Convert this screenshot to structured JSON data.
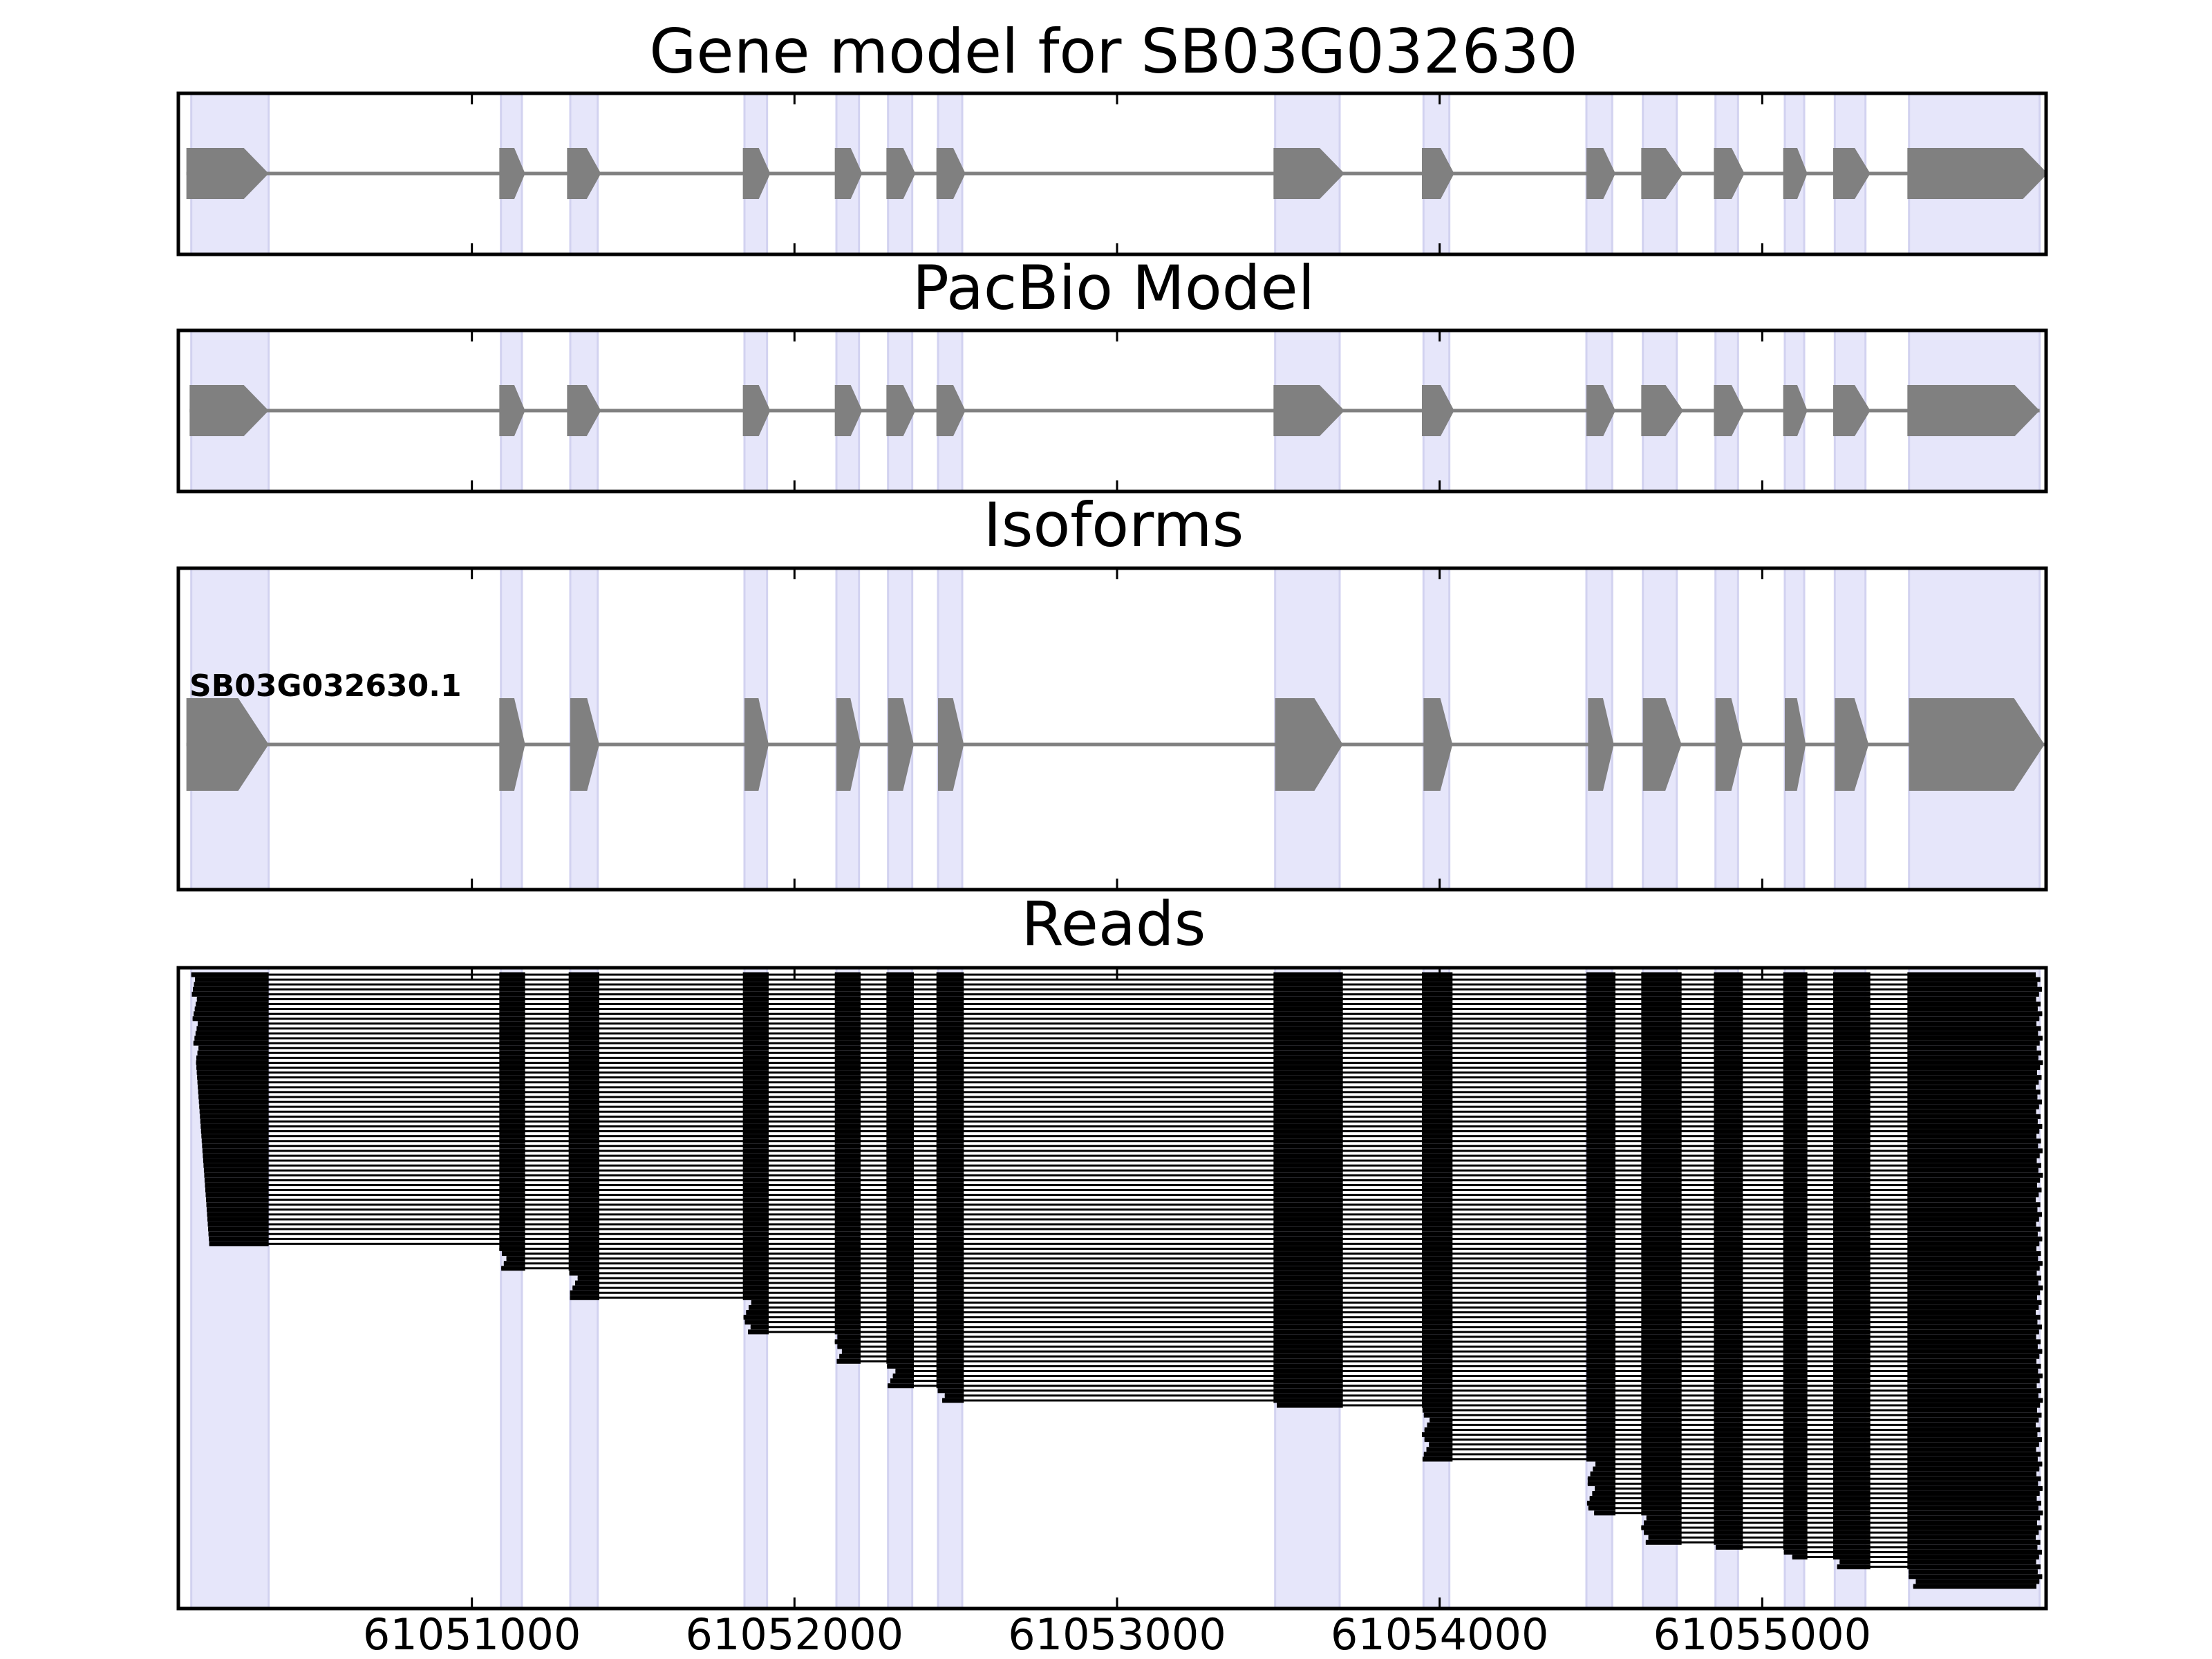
{
  "colors": {
    "exon_highlight": "#e6e6fa",
    "exon_highlight_edge": "#d2d2f0",
    "gene_feature": "#808080",
    "read": "#000000",
    "frame": "#000000"
  },
  "chart_data": {
    "type": "gene_structure_tracks",
    "x_axis": {
      "range": [
        61050090,
        61055880
      ],
      "ticks": [
        61051000,
        61052000,
        61053000,
        61054000,
        61055000
      ],
      "tick_labels": [
        "61051000",
        "61052000",
        "61053000",
        "61054000",
        "61055000"
      ]
    },
    "exon_regions": [
      [
        61050130,
        61050370
      ],
      [
        61051090,
        61051155
      ],
      [
        61051305,
        61051390
      ],
      [
        61051845,
        61051915
      ],
      [
        61052130,
        61052200
      ],
      [
        61052290,
        61052365
      ],
      [
        61052445,
        61052520
      ],
      [
        61053490,
        61053690
      ],
      [
        61053950,
        61054030
      ],
      [
        61054455,
        61054535
      ],
      [
        61054630,
        61054735
      ],
      [
        61054855,
        61054925
      ],
      [
        61055070,
        61055130
      ],
      [
        61055225,
        61055320
      ],
      [
        61055455,
        61055860
      ]
    ],
    "panels": [
      {
        "title": "Gene model for SB03G032630",
        "kind": "gene",
        "exons": [
          [
            61050115,
            61050370
          ],
          [
            61051085,
            61051165
          ],
          [
            61051295,
            61051400
          ],
          [
            61051840,
            61051925
          ],
          [
            61052125,
            61052210
          ],
          [
            61052285,
            61052375
          ],
          [
            61052440,
            61052530
          ],
          [
            61053485,
            61053705
          ],
          [
            61053945,
            61054045
          ],
          [
            61054455,
            61054545
          ],
          [
            61054625,
            61054755
          ],
          [
            61054850,
            61054945
          ],
          [
            61055065,
            61055140
          ],
          [
            61055220,
            61055335
          ],
          [
            61055450,
            61055885
          ]
        ]
      },
      {
        "title": "PacBio Model",
        "kind": "gene",
        "exons": [
          [
            61050125,
            61050370
          ],
          [
            61051085,
            61051165
          ],
          [
            61051295,
            61051400
          ],
          [
            61051840,
            61051925
          ],
          [
            61052125,
            61052210
          ],
          [
            61052285,
            61052375
          ],
          [
            61052440,
            61052530
          ],
          [
            61053485,
            61053705
          ],
          [
            61053945,
            61054045
          ],
          [
            61054455,
            61054545
          ],
          [
            61054625,
            61054755
          ],
          [
            61054850,
            61054945
          ],
          [
            61055065,
            61055140
          ],
          [
            61055220,
            61055335
          ],
          [
            61055450,
            61055860
          ]
        ]
      },
      {
        "title": "Isoforms",
        "kind": "isoform",
        "isoform_label": "SB03G032630.1",
        "exons": [
          [
            61050115,
            61050370
          ],
          [
            61051085,
            61051165
          ],
          [
            61051305,
            61051395
          ],
          [
            61051845,
            61051920
          ],
          [
            61052130,
            61052205
          ],
          [
            61052290,
            61052370
          ],
          [
            61052445,
            61052525
          ],
          [
            61053490,
            61053700
          ],
          [
            61053950,
            61054040
          ],
          [
            61054460,
            61054540
          ],
          [
            61054630,
            61054750
          ],
          [
            61054855,
            61054940
          ],
          [
            61055070,
            61055135
          ],
          [
            61055225,
            61055330
          ],
          [
            61055455,
            61055875
          ]
        ]
      },
      {
        "title": "Reads",
        "kind": "reads"
      }
    ],
    "reads_summary": {
      "read_count": 126,
      "first_exon_reads": 56,
      "exon_blocks": [
        [
          61050130,
          61050370
        ],
        [
          61051085,
          61051165
        ],
        [
          61051300,
          61051395
        ],
        [
          61051840,
          61051920
        ],
        [
          61052125,
          61052205
        ],
        [
          61052285,
          61052370
        ],
        [
          61052440,
          61052525
        ],
        [
          61053485,
          61053700
        ],
        [
          61053945,
          61054040
        ],
        [
          61054455,
          61054545
        ],
        [
          61054625,
          61054750
        ],
        [
          61054850,
          61054940
        ],
        [
          61055065,
          61055140
        ],
        [
          61055220,
          61055335
        ],
        [
          61055450,
          61055860
        ]
      ]
    }
  }
}
